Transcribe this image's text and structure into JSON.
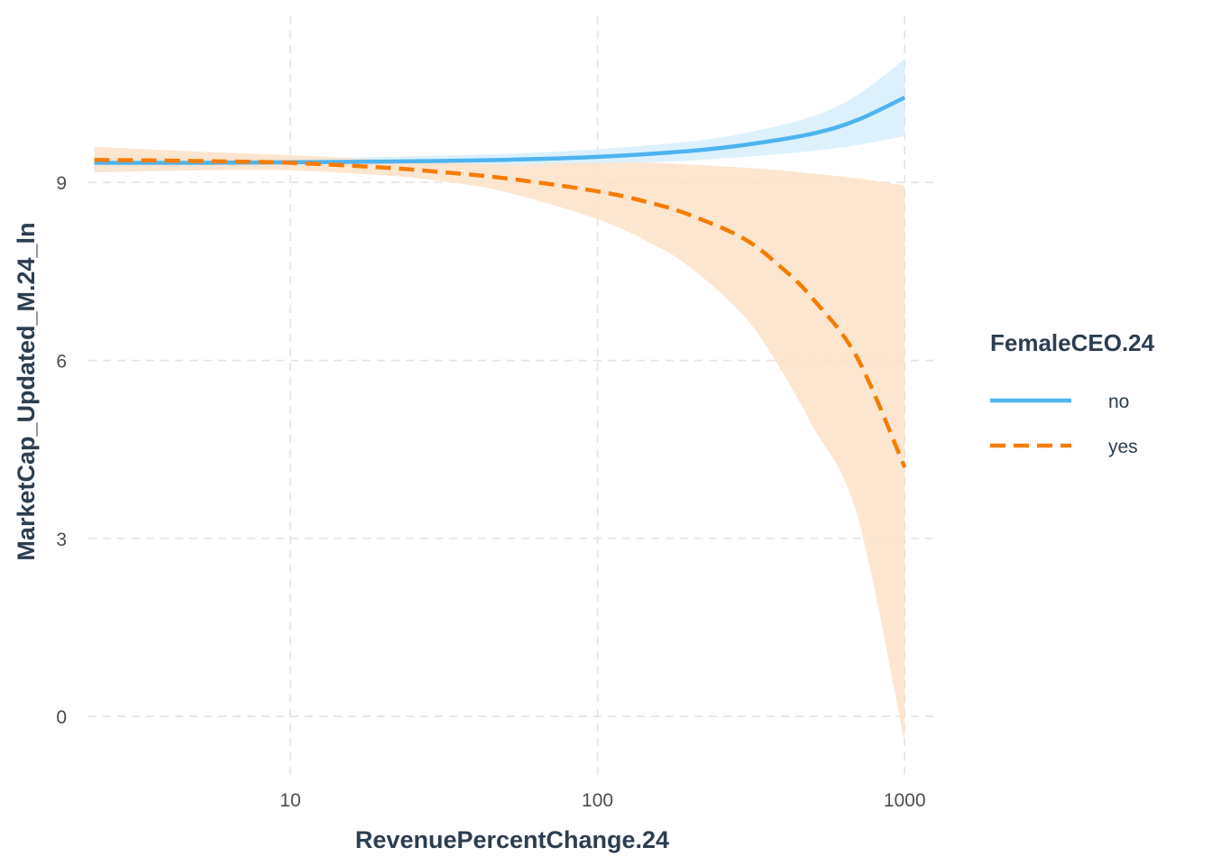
{
  "chart_data": {
    "type": "line",
    "xlabel": "RevenuePercentChange.24",
    "ylabel": "MarketCap_Updated_M.24_ln",
    "x_scale": "log10",
    "xlim": [
      2.2,
      1300
    ],
    "ylim": [
      -1,
      11.8
    ],
    "x_ticks": [
      10,
      100,
      1000
    ],
    "x_tick_labels": [
      "10",
      "100",
      "1000"
    ],
    "y_ticks": [
      0,
      3,
      6,
      9
    ],
    "y_tick_labels": [
      "0",
      "3",
      "6",
      "9"
    ],
    "grid": true,
    "legend": {
      "title": "FemaleCEO.24",
      "placement": "right"
    },
    "series": [
      {
        "name": "no",
        "color": "#4db3f0",
        "ribbon_color": "#d6effc",
        "line_style": "solid",
        "x": [
          2.3,
          5,
          10,
          20,
          50,
          100,
          200,
          300,
          500,
          700,
          1000
        ],
        "y": [
          9.33,
          9.33,
          9.34,
          9.35,
          9.38,
          9.43,
          9.53,
          9.63,
          9.82,
          10.05,
          10.43
        ],
        "lower": [
          9.17,
          9.22,
          9.26,
          9.27,
          9.28,
          9.3,
          9.37,
          9.43,
          9.53,
          9.63,
          9.78
        ],
        "upper": [
          9.49,
          9.44,
          9.42,
          9.43,
          9.48,
          9.56,
          9.69,
          9.83,
          10.11,
          10.47,
          11.08
        ]
      },
      {
        "name": "yes",
        "color": "#f57c00",
        "ribbon_color": "#fde2c8",
        "line_style": "dashed",
        "x": [
          2.3,
          5,
          10,
          20,
          30,
          50,
          100,
          150,
          200,
          300,
          400,
          500,
          700,
          1000
        ],
        "y": [
          9.38,
          9.36,
          9.33,
          9.25,
          9.18,
          9.07,
          8.85,
          8.65,
          8.45,
          8.05,
          7.55,
          7.05,
          6.05,
          4.2
        ],
        "lower": [
          9.17,
          9.2,
          9.2,
          9.12,
          9.03,
          8.84,
          8.38,
          7.97,
          7.57,
          6.75,
          5.8,
          4.9,
          3.4,
          -0.45
        ],
        "upper": [
          9.6,
          9.52,
          9.46,
          9.38,
          9.34,
          9.3,
          9.33,
          9.33,
          9.3,
          9.25,
          9.2,
          9.15,
          9.07,
          8.95
        ]
      }
    ]
  }
}
